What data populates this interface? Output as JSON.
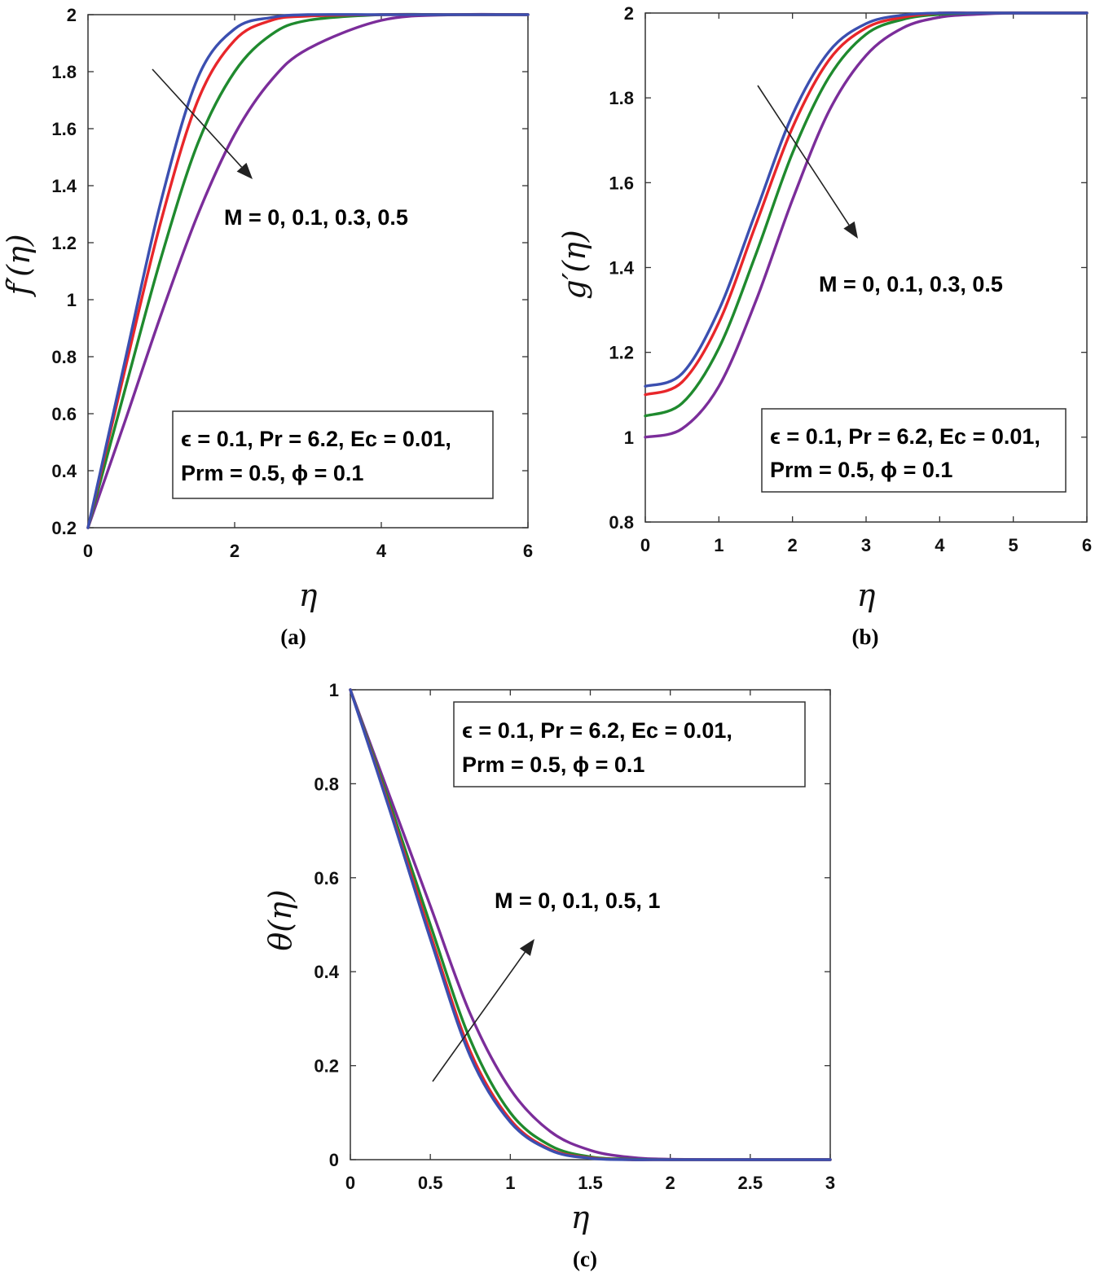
{
  "figure": {
    "colors": {
      "series_1": "#3b4fb0",
      "series_2": "#e8262a",
      "series_3": "#1f8a2e",
      "series_4": "#7b2d9a",
      "axis": "#333333",
      "arrow": "#222222"
    }
  },
  "chart_data": [
    {
      "type": "line",
      "panel_label": "(a)",
      "xlabel": "η",
      "ylabel": "f′(η)",
      "xlim": [
        0,
        6
      ],
      "ylim": [
        0.2,
        2
      ],
      "xticks": [
        0,
        2,
        4,
        6
      ],
      "yticks": [
        0.2,
        0.4,
        0.6,
        0.8,
        1,
        1.2,
        1.4,
        1.6,
        1.8,
        2
      ],
      "tick_labels_x": [
        "0",
        "2",
        "4",
        "6"
      ],
      "tick_labels_y": [
        "0.2",
        "0.4",
        "0.6",
        "0.8",
        "1",
        "1.2",
        "1.4",
        "1.6",
        "1.8",
        "2"
      ],
      "x": [
        0,
        0.5,
        1,
        1.5,
        2,
        2.5,
        3,
        4,
        5,
        6
      ],
      "series": [
        {
          "name": "M = 0",
          "values": [
            0.2,
            0.78,
            1.35,
            1.78,
            1.95,
            1.99,
            2.0,
            2.0,
            2.0,
            2.0
          ]
        },
        {
          "name": "M = 0.1",
          "values": [
            0.2,
            0.75,
            1.28,
            1.7,
            1.91,
            1.98,
            1.995,
            2.0,
            2.0,
            2.0
          ]
        },
        {
          "name": "M = 0.3",
          "values": [
            0.2,
            0.68,
            1.15,
            1.55,
            1.8,
            1.93,
            1.98,
            2.0,
            2.0,
            2.0
          ]
        },
        {
          "name": "M = 0.5",
          "values": [
            0.2,
            0.57,
            0.95,
            1.3,
            1.58,
            1.77,
            1.88,
            1.98,
            2.0,
            2.0
          ]
        }
      ],
      "annotation": "M = 0, 0.1, 0.3, 0.5",
      "arrow_direction": "down-right",
      "param_box": {
        "line1": "ϵ = 0.1, Pr = 6.2, Ec = 0.01,",
        "line2": "Prm = 0.5, ϕ = 0.1",
        "placement": "bottom-right"
      }
    },
    {
      "type": "line",
      "panel_label": "(b)",
      "xlabel": "η",
      "ylabel": "g′(η)",
      "xlim": [
        0,
        6
      ],
      "ylim": [
        0.8,
        2
      ],
      "xticks": [
        0,
        1,
        2,
        3,
        4,
        5,
        6
      ],
      "yticks": [
        0.8,
        1,
        1.2,
        1.4,
        1.6,
        1.8,
        2
      ],
      "tick_labels_x": [
        "0",
        "1",
        "2",
        "3",
        "4",
        "5",
        "6"
      ],
      "tick_labels_y": [
        "0.8",
        "1",
        "1.2",
        "1.4",
        "1.6",
        "1.8",
        "2"
      ],
      "x": [
        0,
        0.5,
        1,
        1.5,
        2,
        2.5,
        3,
        3.5,
        4,
        4.5,
        5,
        6
      ],
      "series": [
        {
          "name": "M = 0",
          "values": [
            1.12,
            1.15,
            1.3,
            1.53,
            1.76,
            1.91,
            1.975,
            1.995,
            2.0,
            2.0,
            2.0,
            2.0
          ]
        },
        {
          "name": "M = 0.1",
          "values": [
            1.1,
            1.13,
            1.27,
            1.5,
            1.73,
            1.89,
            1.965,
            1.99,
            2.0,
            2.0,
            2.0,
            2.0
          ]
        },
        {
          "name": "M = 0.3",
          "values": [
            1.05,
            1.08,
            1.21,
            1.43,
            1.67,
            1.85,
            1.95,
            1.985,
            1.997,
            2.0,
            2.0,
            2.0
          ]
        },
        {
          "name": "M = 0.5",
          "values": [
            1.0,
            1.02,
            1.12,
            1.32,
            1.56,
            1.77,
            1.9,
            1.965,
            1.99,
            1.997,
            2.0,
            2.0
          ]
        }
      ],
      "annotation": "M = 0, 0.1, 0.3, 0.5",
      "arrow_direction": "down-right",
      "param_box": {
        "line1": "ϵ = 0.1, Pr = 6.2, Ec = 0.01,",
        "line2": "Prm = 0.5, ϕ = 0.1",
        "placement": "bottom-right"
      }
    },
    {
      "type": "line",
      "panel_label": "(c)",
      "xlabel": "η",
      "ylabel": "θ(η)",
      "xlim": [
        0,
        3
      ],
      "ylim": [
        0,
        1
      ],
      "xticks": [
        0,
        0.5,
        1,
        1.5,
        2,
        2.5,
        3
      ],
      "yticks": [
        0,
        0.2,
        0.4,
        0.6,
        0.8,
        1
      ],
      "tick_labels_x": [
        "0",
        "0.5",
        "1",
        "1.5",
        "2",
        "2.5",
        "3"
      ],
      "tick_labels_y": [
        "0",
        "0.2",
        "0.4",
        "0.6",
        "0.8",
        "1"
      ],
      "x": [
        0,
        0.25,
        0.5,
        0.75,
        1,
        1.25,
        1.5,
        1.75,
        2,
        2.5,
        3
      ],
      "series": [
        {
          "name": "M = 0",
          "values": [
            1.0,
            0.74,
            0.47,
            0.22,
            0.08,
            0.02,
            0.003,
            0.0,
            0.0,
            0.0,
            0.0
          ]
        },
        {
          "name": "M = 0.1",
          "values": [
            1.0,
            0.745,
            0.48,
            0.23,
            0.085,
            0.022,
            0.004,
            0.0,
            0.0,
            0.0,
            0.0
          ]
        },
        {
          "name": "M = 0.5",
          "values": [
            1.0,
            0.755,
            0.5,
            0.255,
            0.1,
            0.03,
            0.006,
            0.001,
            0.0,
            0.0,
            0.0
          ]
        },
        {
          "name": "M = 1",
          "values": [
            1.0,
            0.77,
            0.54,
            0.31,
            0.15,
            0.06,
            0.02,
            0.005,
            0.001,
            0.0,
            0.0
          ]
        }
      ],
      "annotation": "M = 0, 0.1, 0.5, 1",
      "arrow_direction": "up-right",
      "param_box": {
        "line1": "ϵ = 0.1, Pr = 6.2, Ec = 0.01,",
        "line2": "Prm = 0.5, ϕ = 0.1",
        "placement": "top-right"
      }
    }
  ]
}
